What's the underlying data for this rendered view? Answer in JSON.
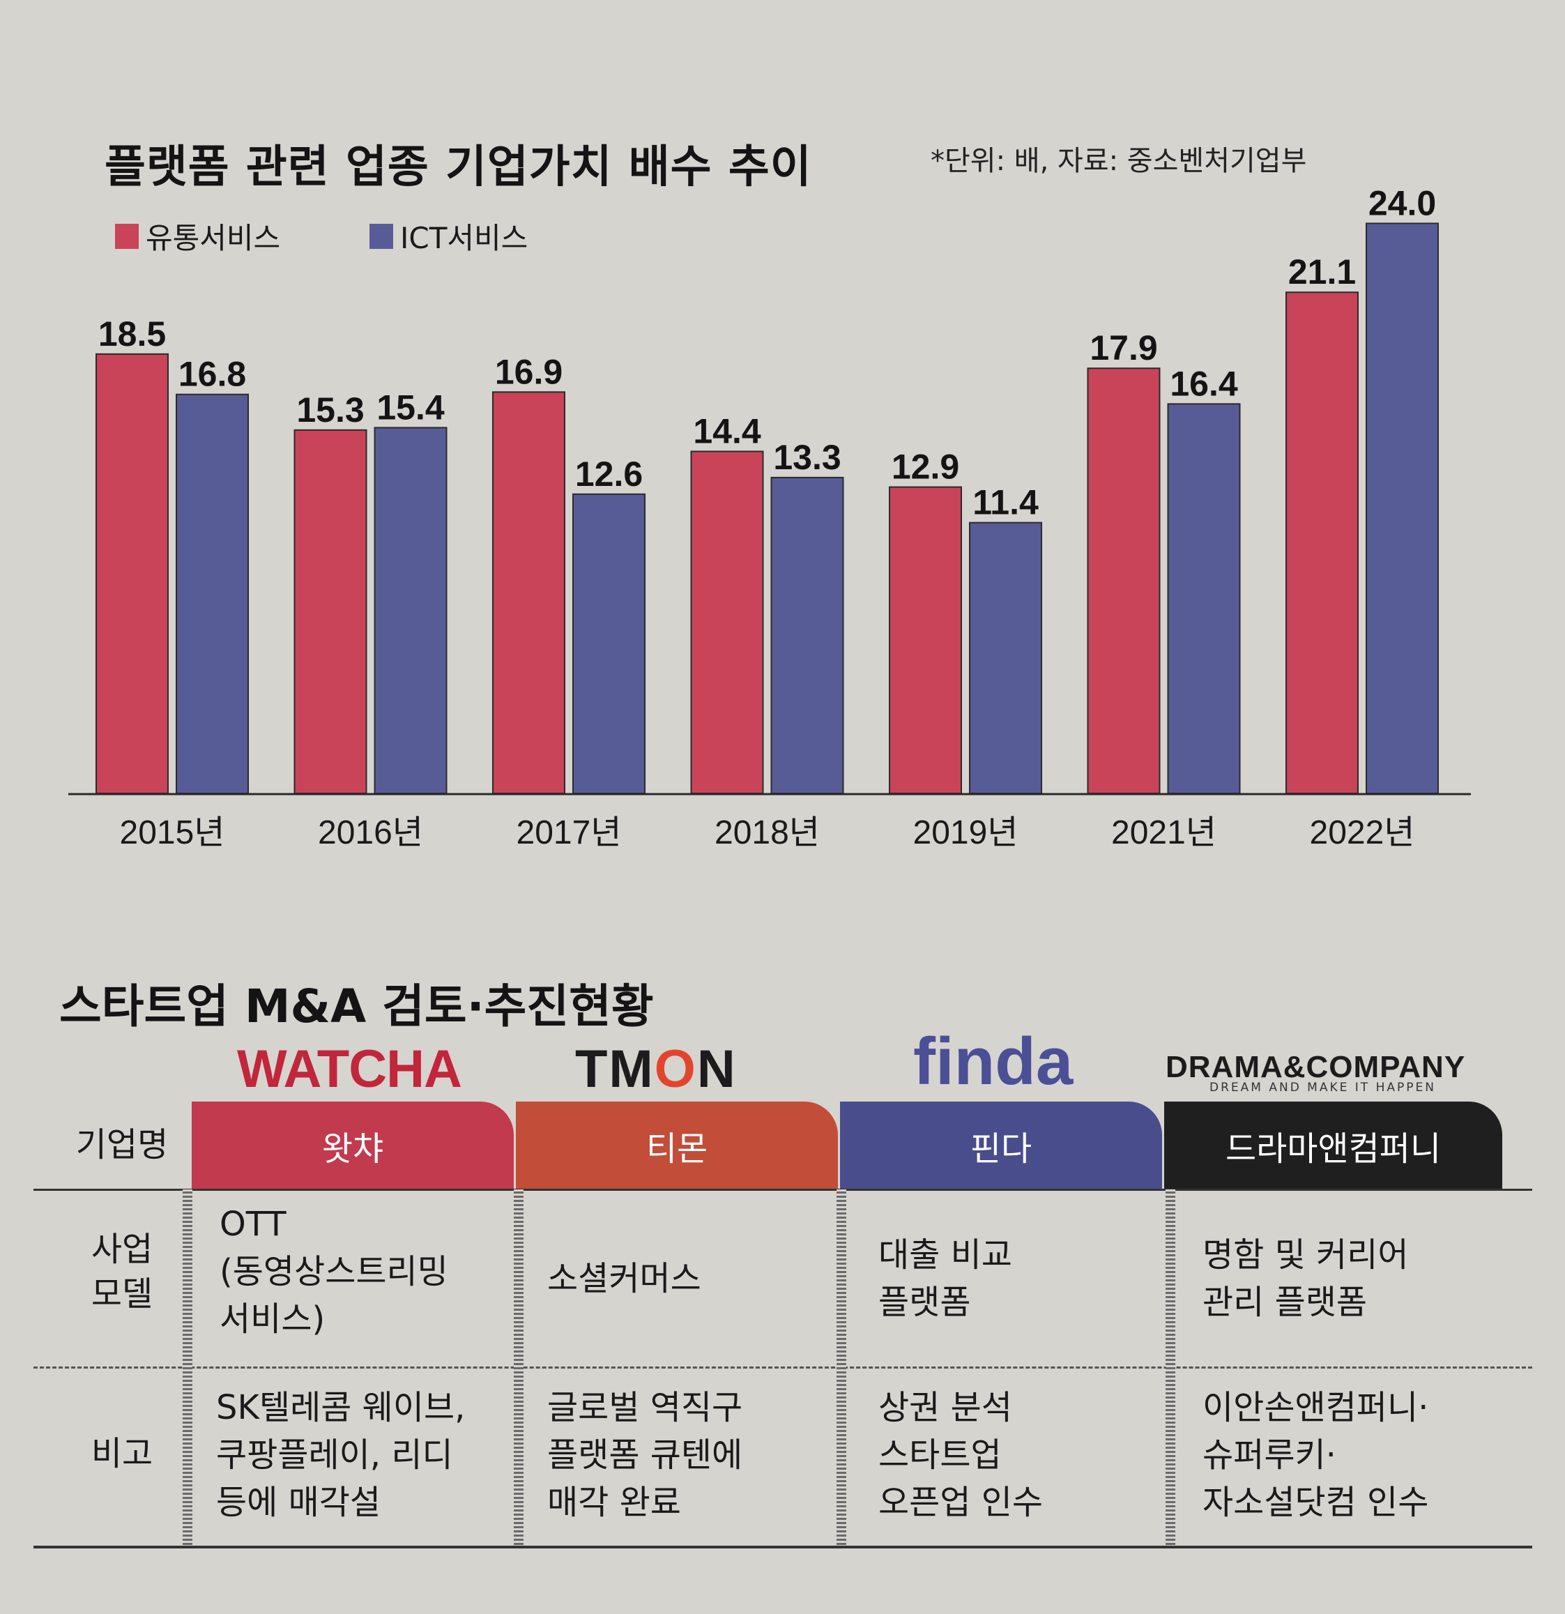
{
  "chart_data": {
    "type": "bar",
    "title": "플랫폼 관련 업종 기업가치 배수 추이",
    "note": "*단위: 배, 자료: 중소벤처기업부",
    "categories": [
      "2015년",
      "2016년",
      "2017년",
      "2018년",
      "2019년",
      "2021년",
      "2022년"
    ],
    "series": [
      {
        "name": "유통서비스",
        "color": "#c94459",
        "values": [
          18.5,
          15.3,
          16.9,
          14.4,
          12.9,
          17.9,
          21.1
        ]
      },
      {
        "name": "ICT서비스",
        "color": "#585c96",
        "values": [
          16.8,
          15.4,
          12.6,
          13.3,
          11.4,
          16.4,
          24.0
        ]
      }
    ],
    "ylim": [
      0,
      24.6
    ],
    "grid": false,
    "legend": "top-left"
  },
  "section2": {
    "title": "스타트업 M&A 검토·추진현황",
    "row_headers": {
      "name": "기업명",
      "model": "사업\n모델",
      "note": "비고"
    },
    "logos": [
      {
        "text": "WATCHA",
        "color": "#c1263a"
      },
      {
        "text_before": "TM",
        "text_o": "O",
        "text_after": "N",
        "color": "#1c1c1c"
      },
      {
        "text": "finda",
        "color": "#4b4f96"
      },
      {
        "text": "DRAMA&COMPANY",
        "sub": "DREAM AND MAKE IT HAPPEN",
        "color": "#1c1c1c"
      }
    ],
    "companies": [
      {
        "name": "왓챠",
        "model": "OTT\n(동영상스트리밍\n서비스)",
        "note": "SK텔레콤 웨이브,\n쿠팡플레이, 리디\n등에 매각설"
      },
      {
        "name": "티몬",
        "model": "소셜커머스",
        "note": "글로벌 역직구\n플랫폼 큐텐에\n매각 완료"
      },
      {
        "name": "핀다",
        "model": "대출 비교\n플랫폼",
        "note": "상권 분석\n스타트업\n오픈업 인수"
      },
      {
        "name": "드라마앤컴퍼니",
        "model": "명함 및 커리어\n관리 플랫폼",
        "note": "이안손앤컴퍼니·\n슈퍼루키·\n자소설닷컴 인수"
      }
    ]
  }
}
